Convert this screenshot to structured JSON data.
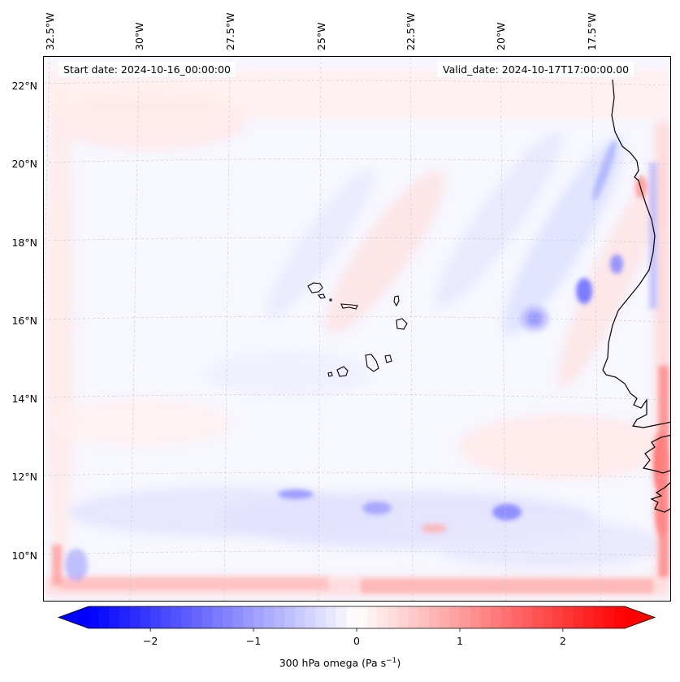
{
  "header": {
    "start_date": "Start date: 2024-10-16_00:00:00",
    "valid_date": "Valid_date: 2024-10-17T17:00:00.00"
  },
  "map": {
    "lon_labels": [
      "32.5°W",
      "30°W",
      "27.5°W",
      "25°W",
      "22.5°W",
      "20°W",
      "17.5°W"
    ],
    "lat_labels": [
      "22°N",
      "20°N",
      "18°N",
      "16°N",
      "14°N",
      "12°N",
      "10°N"
    ],
    "variable": "300 hPa omega"
  },
  "colorbar": {
    "min": -2.6,
    "max": 2.6,
    "ticks": [
      "−2",
      "−1",
      "0",
      "1",
      "2"
    ],
    "tick_values": [
      -2,
      -1,
      0,
      1,
      2
    ],
    "label_prefix": "300 hPa omega (Pa s",
    "label_exp": "−1",
    "label_suffix": ")",
    "colors": {
      "negative": "#0000ff",
      "neutral": "#ffffff",
      "positive": "#ff0000"
    }
  }
}
